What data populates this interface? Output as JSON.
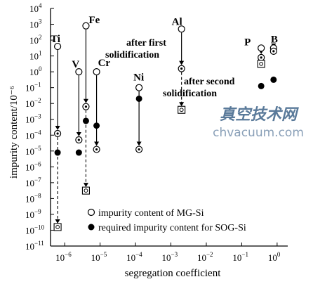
{
  "chart_data": {
    "type": "scatter",
    "xlabel": "segregation coefficient",
    "ylabel": "impurity content/10⁻⁶",
    "x_scale": "log",
    "y_scale": "log",
    "xlim_exp": [
      -6.4,
      0.3
    ],
    "ylim_exp": [
      -11,
      4
    ],
    "x_ticks": [
      {
        "exp": -6,
        "label": "10"
      },
      {
        "exp": -5,
        "label": "10"
      },
      {
        "exp": -4,
        "label": "10"
      },
      {
        "exp": -3,
        "label": "10"
      },
      {
        "exp": -2,
        "label": "10"
      },
      {
        "exp": -1,
        "label": "10"
      },
      {
        "exp": 0,
        "label": "10"
      }
    ],
    "y_ticks": [
      {
        "exp": 4,
        "label": "10"
      },
      {
        "exp": 3,
        "label": "10"
      },
      {
        "exp": 2,
        "label": "10"
      },
      {
        "exp": 1,
        "label": "10"
      },
      {
        "exp": 0,
        "label": "10"
      },
      {
        "exp": -1,
        "label": "10"
      },
      {
        "exp": -2,
        "label": "10"
      },
      {
        "exp": -3,
        "label": "10"
      },
      {
        "exp": -4,
        "label": "10"
      },
      {
        "exp": -5,
        "label": "10"
      },
      {
        "exp": -6,
        "label": "10"
      },
      {
        "exp": -7,
        "label": "10"
      },
      {
        "exp": -8,
        "label": "10"
      },
      {
        "exp": -9,
        "label": "10"
      },
      {
        "exp": -10,
        "label": "10"
      },
      {
        "exp": -11,
        "label": "10"
      }
    ],
    "elements": [
      {
        "name": "Ti",
        "k_exp": -6.2,
        "mg_exp": 1.6,
        "first_exp": -3.9,
        "second_exp": -9.8,
        "sog_exp": -5.1
      },
      {
        "name": "V",
        "k_exp": -5.6,
        "mg_exp": 0.0,
        "first_exp": -4.3,
        "second_exp": null,
        "sog_exp": -5.1
      },
      {
        "name": "Fe",
        "k_exp": -5.4,
        "mg_exp": 2.9,
        "first_exp": -2.2,
        "second_exp": -7.5,
        "sog_exp": -3.1
      },
      {
        "name": "Cr",
        "k_exp": -5.1,
        "mg_exp": 0.0,
        "first_exp": -4.9,
        "second_exp": null,
        "sog_exp": -3.4
      },
      {
        "name": "Ni",
        "k_exp": -3.9,
        "mg_exp": -1.0,
        "first_exp": -4.9,
        "second_exp": null,
        "sog_exp": -1.7
      },
      {
        "name": "Al",
        "k_exp": -2.7,
        "mg_exp": 2.7,
        "first_exp": 0.2,
        "second_exp": -2.4,
        "sog_exp": null
      },
      {
        "name": "P",
        "k_exp": -0.45,
        "mg_exp": 1.5,
        "first_exp": 0.9,
        "second_exp": 0.5,
        "sog_exp": -0.9
      },
      {
        "name": "B",
        "k_exp": -0.1,
        "mg_exp": 1.5,
        "first_exp": 1.3,
        "second_exp": null,
        "sog_exp": -0.5
      }
    ],
    "annotations": [
      {
        "id": "after_first",
        "lines": [
          "after first",
          "solidification"
        ]
      },
      {
        "id": "after_second",
        "lines": [
          "after second",
          "solidification"
        ]
      }
    ],
    "legend": {
      "placement": "bottom-center",
      "items": [
        {
          "marker": "open-circle",
          "label": "impurity content of MG-Si"
        },
        {
          "marker": "filled-circle",
          "label": "required impurity content for SOG-Si"
        }
      ]
    }
  },
  "watermark": {
    "line1": "真空技术网",
    "line2": "chvacuum.com",
    "color1": "#5a7a9a",
    "color2": "#8aa0b8"
  }
}
